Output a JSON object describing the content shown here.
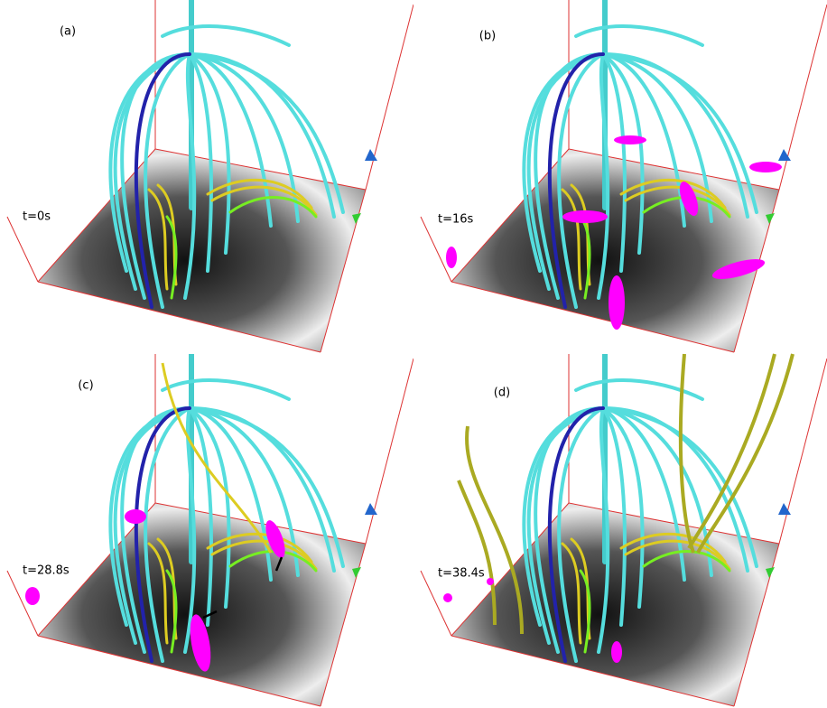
{
  "panels": [
    {
      "label": "(a)",
      "time": "t=0s"
    },
    {
      "label": "(b)",
      "time": "t=16s"
    },
    {
      "label": "(c)",
      "time": "t=28.8s"
    },
    {
      "label": "(d)",
      "time": "t=38.4s"
    }
  ]
}
